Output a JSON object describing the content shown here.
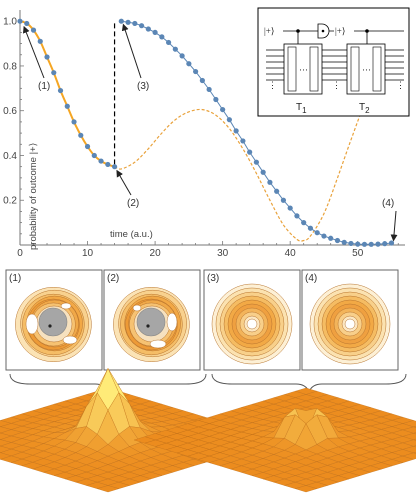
{
  "chart_data": [
    {
      "type": "line",
      "xlabel": "time (a.u.)",
      "ylabel": "probability of outcome |+⟩",
      "xlim": [
        0,
        57
      ],
      "ylim": [
        0,
        1.05
      ],
      "xticks": [
        0,
        10,
        20,
        30,
        40,
        50
      ],
      "yticks": [
        0.2,
        0.4,
        0.6,
        0.8,
        1.0
      ],
      "series": [
        {
          "style": "orange-solid",
          "color": "#f5a623",
          "x": [
            0,
            1,
            2,
            3,
            4,
            5,
            6,
            7,
            8,
            9,
            10,
            11,
            12,
            13,
            14
          ],
          "y": [
            1.0,
            0.99,
            0.96,
            0.91,
            0.84,
            0.77,
            0.69,
            0.62,
            0.55,
            0.49,
            0.44,
            0.4,
            0.375,
            0.36,
            0.35
          ]
        },
        {
          "style": "orange-dashed",
          "color": "#e9a23b",
          "x": [
            14,
            15,
            17,
            19,
            21,
            23,
            25,
            27,
            29,
            31,
            33,
            35,
            37,
            39,
            41,
            42,
            43,
            45,
            47,
            49,
            51,
            53,
            55,
            56.5
          ],
          "y": [
            0.35,
            0.34,
            0.37,
            0.43,
            0.5,
            0.56,
            0.595,
            0.605,
            0.58,
            0.52,
            0.43,
            0.32,
            0.2,
            0.09,
            0.025,
            0.02,
            0.04,
            0.14,
            0.3,
            0.47,
            0.63,
            0.75,
            0.83,
            0.87
          ]
        },
        {
          "style": "blue-markers",
          "color": "#5b86b5",
          "x": [
            0,
            1,
            2,
            3,
            4,
            5,
            6,
            7,
            8,
            9,
            10,
            11,
            12,
            13,
            14,
            15,
            16,
            17,
            18,
            19,
            20,
            21,
            22,
            23,
            24,
            25,
            26,
            27,
            28,
            29,
            30,
            31,
            32,
            33,
            34,
            35,
            36,
            37,
            38,
            39,
            40,
            41,
            42,
            43,
            44,
            45,
            46,
            47,
            48,
            49,
            50,
            51,
            52,
            53,
            54,
            55
          ],
          "y": [
            1.0,
            0.99,
            0.96,
            0.91,
            0.84,
            0.77,
            0.69,
            0.62,
            0.55,
            0.49,
            0.44,
            0.4,
            0.375,
            0.36,
            0.35,
            1.0,
            0.995,
            0.99,
            0.98,
            0.965,
            0.95,
            0.93,
            0.905,
            0.875,
            0.845,
            0.81,
            0.775,
            0.735,
            0.695,
            0.65,
            0.605,
            0.56,
            0.51,
            0.465,
            0.415,
            0.37,
            0.325,
            0.28,
            0.24,
            0.2,
            0.165,
            0.13,
            0.1,
            0.075,
            0.055,
            0.04,
            0.03,
            0.02,
            0.012,
            0.007,
            0.004,
            0.003,
            0.003,
            0.004,
            0.006,
            0.009
          ]
        }
      ],
      "jump_line": {
        "x": 14,
        "y_from": 0.36,
        "y_to": 1.0,
        "style": "black-dashed"
      },
      "annotations": [
        {
          "label": "(1)",
          "x": 0.5,
          "y": 0.98
        },
        {
          "label": "(2)",
          "x": 14,
          "y": 0.35
        },
        {
          "label": "(3)",
          "x": 15,
          "y": 0.99
        },
        {
          "label": "(4)",
          "x": 55.3,
          "y": 0.01
        }
      ]
    }
  ],
  "inset": {
    "states": [
      "|+⟩",
      "|+⟩"
    ],
    "blocks": [
      "T",
      "T"
    ],
    "block_subscripts": [
      "1",
      "2"
    ],
    "dots": "⋮",
    "ellipsis": "···"
  },
  "panels": {
    "labels": [
      "(1)",
      "(2)",
      "(3)",
      "(4)"
    ]
  },
  "colors": {
    "blue": "#5b86b5",
    "orange": "#f5a623",
    "contour_fill": "#fbe9c7",
    "contour_line": "#c8832d",
    "grey_disk": "#a6a6a6"
  }
}
